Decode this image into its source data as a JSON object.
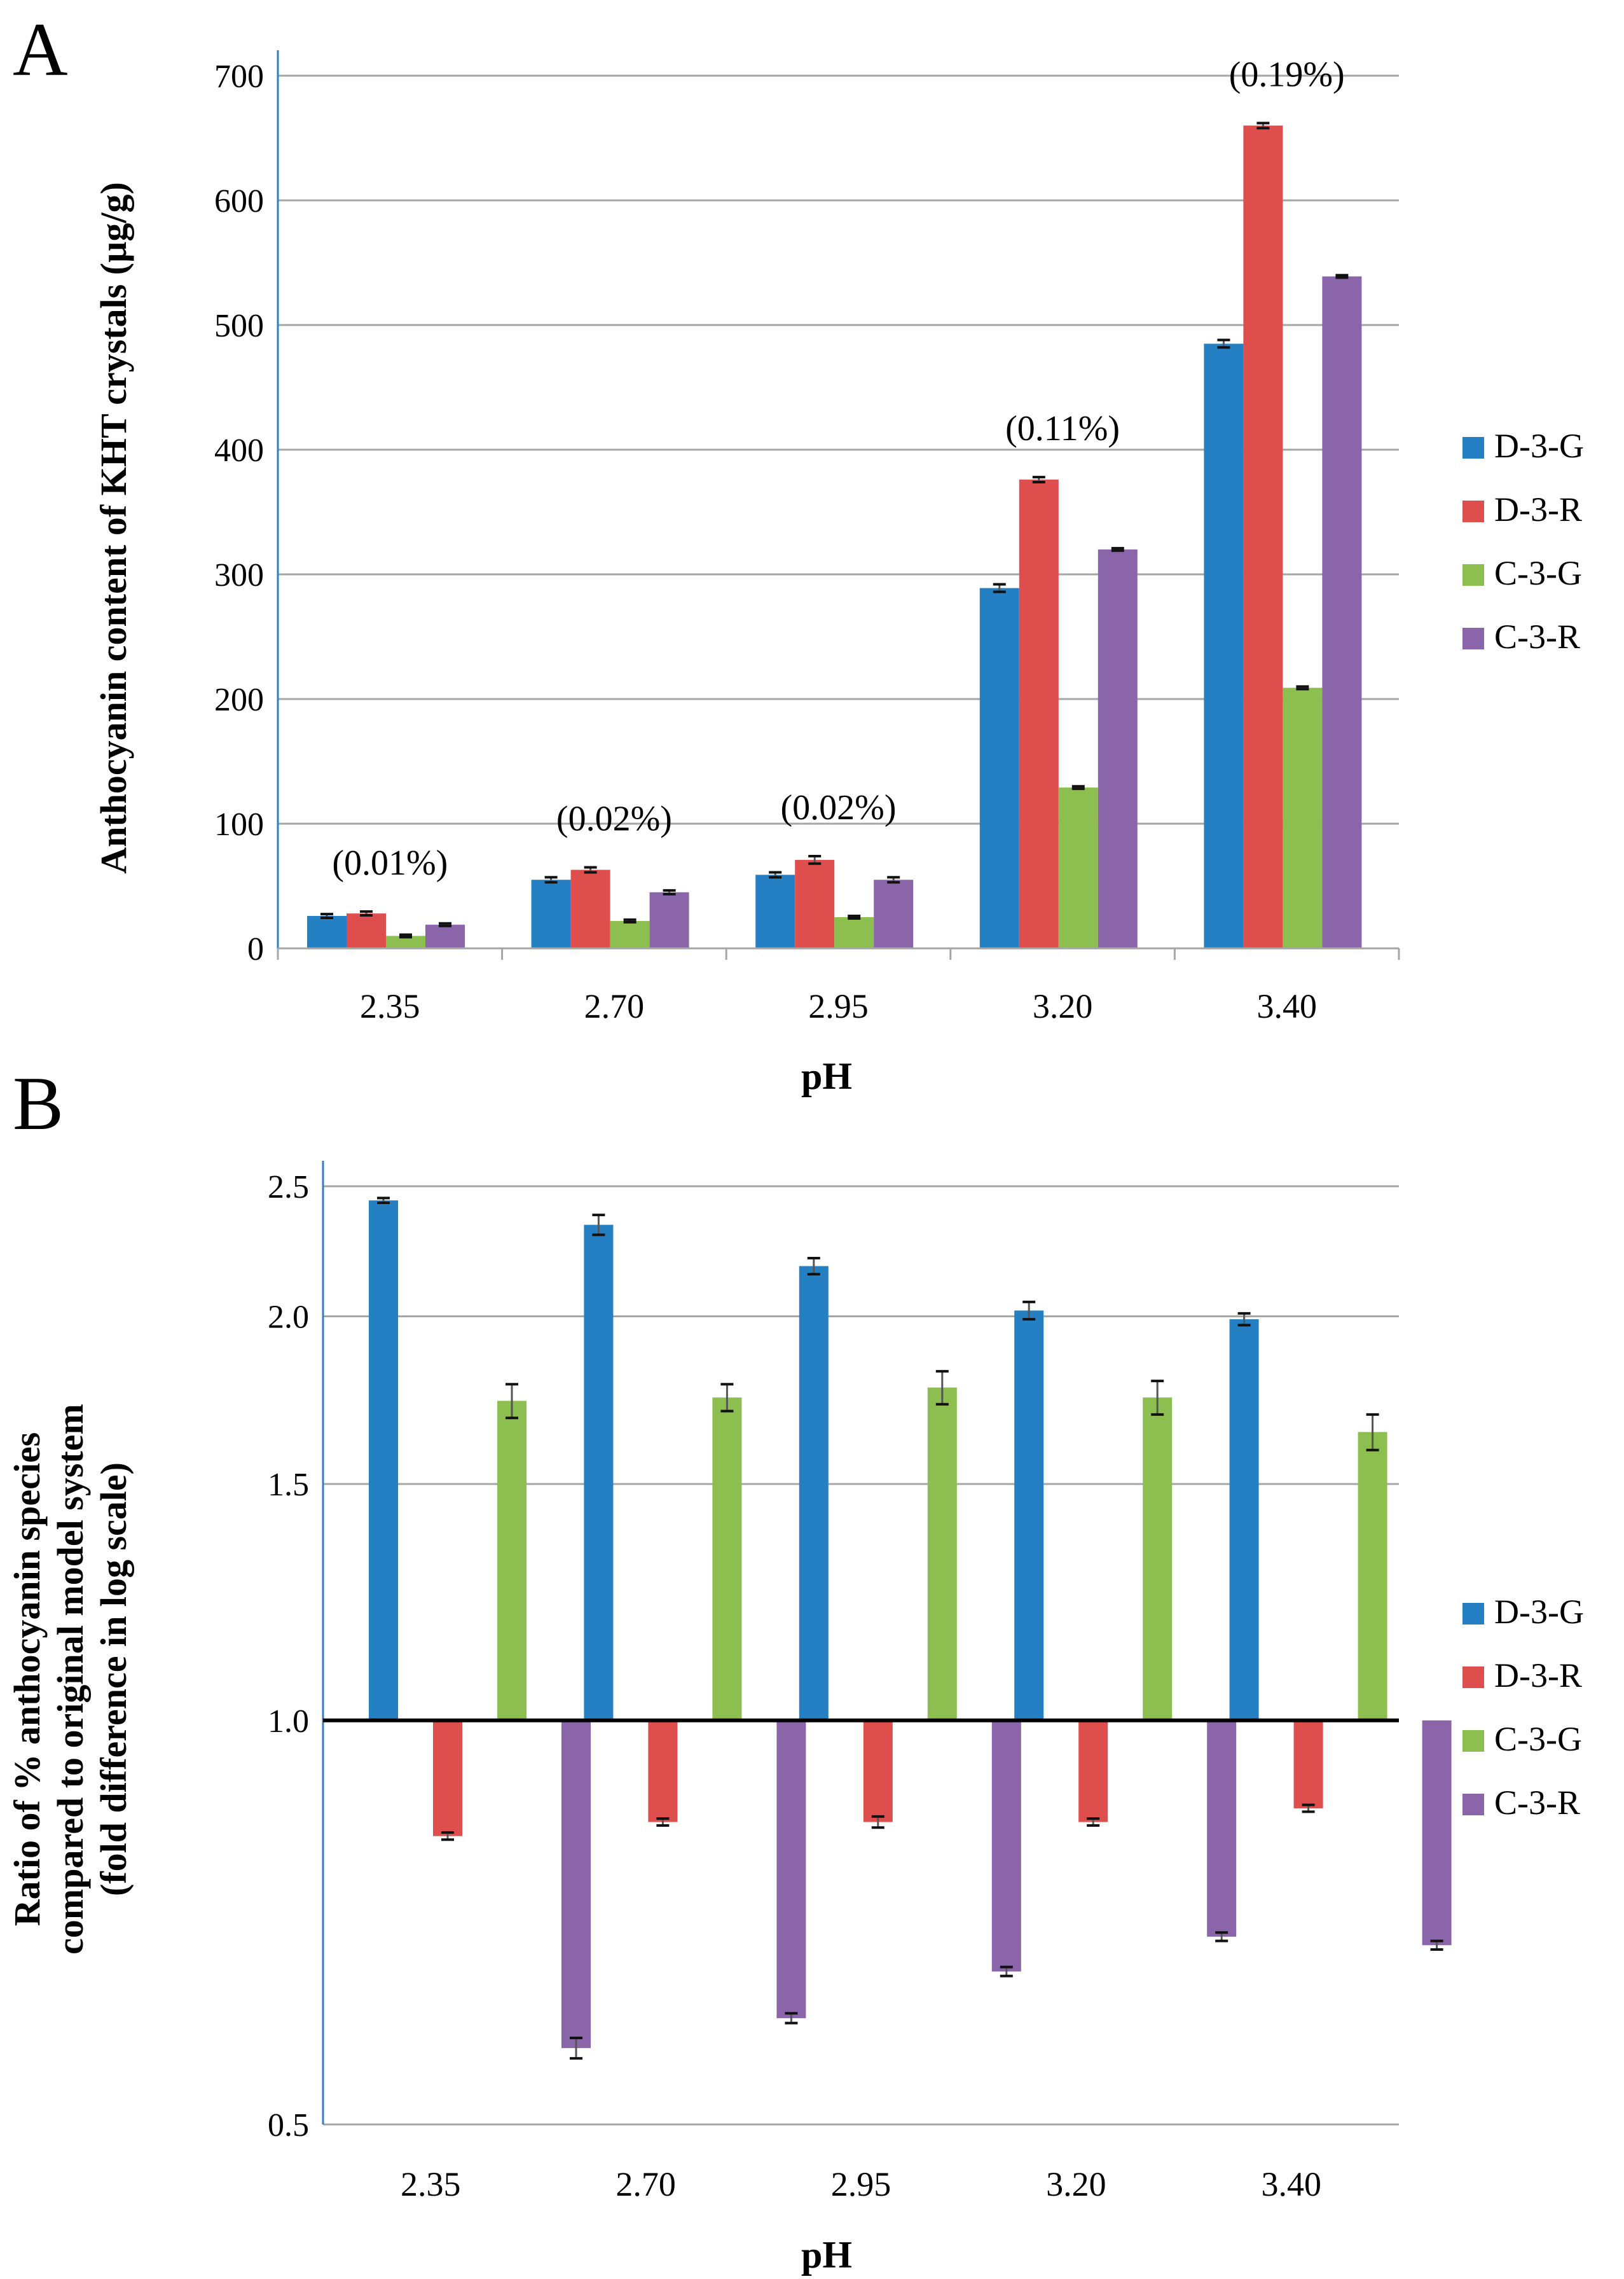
{
  "colors": {
    "D-3-G": "#2580C3",
    "D-3-R": "#DE4E4C",
    "C-3-G": "#8CBF4F",
    "C-3-R": "#8A65A9",
    "grid": "#a6a6a6",
    "axis": "#2d7fc1",
    "baseline": "#000000",
    "error": "#555555"
  },
  "chart_data": [
    {
      "panel": "A",
      "type": "bar",
      "panel_label": "A",
      "categories": [
        "2.35",
        "2.70",
        "2.95",
        "3.20",
        "3.40"
      ],
      "series": [
        {
          "name": "D-3-G",
          "values": [
            26,
            55,
            59,
            289,
            485
          ],
          "errors": [
            1.5,
            2,
            2,
            3,
            3
          ]
        },
        {
          "name": "D-3-R",
          "values": [
            28,
            63,
            71,
            376,
            660
          ],
          "errors": [
            1.5,
            2,
            3,
            2,
            2
          ]
        },
        {
          "name": "C-3-G",
          "values": [
            10,
            22,
            25,
            129,
            209
          ],
          "errors": [
            1,
            1,
            1,
            1,
            1
          ]
        },
        {
          "name": "C-3-R",
          "values": [
            19,
            45,
            55,
            320,
            539
          ],
          "errors": [
            1,
            1.5,
            2,
            1,
            1
          ]
        }
      ],
      "annotations": [
        "(0.01%)",
        "(0.02%)",
        "(0.02%)",
        "(0.11%)",
        "(0.19%)"
      ],
      "xlabel": "pH",
      "ylabel": "Anthocyanin content of KHT crystals (µg/g)",
      "ylim": [
        0,
        700
      ],
      "yticks": [
        0,
        100,
        200,
        300,
        400,
        500,
        600,
        700
      ],
      "ytick_labels": [
        "0",
        "100",
        "200",
        "300",
        "400",
        "500",
        "600",
        "700"
      ],
      "grid": true,
      "legend": "right",
      "legend_labels": [
        "D-3-G",
        "D-3-R",
        "C-3-G",
        "C-3-R"
      ]
    },
    {
      "panel": "B",
      "type": "bar",
      "panel_label": "B",
      "yscale": "log",
      "baseline": 1.0,
      "categories": [
        "2.35",
        "2.70",
        "2.95",
        "3.20",
        "3.40"
      ],
      "series": [
        {
          "name": "D-3-G",
          "values": [
            2.44,
            2.34,
            2.18,
            2.02,
            1.99
          ],
          "errors": [
            0.01,
            0.04,
            0.03,
            0.03,
            0.02
          ]
        },
        {
          "name": "D-3-R",
          "values": [
            0.82,
            0.84,
            0.84,
            0.84,
            0.86
          ],
          "errors": [
            0.005,
            0.005,
            0.008,
            0.005,
            0.005
          ]
        },
        {
          "name": "C-3-G",
          "values": [
            1.73,
            1.74,
            1.77,
            1.74,
            1.64
          ],
          "errors": [
            0.05,
            0.04,
            0.05,
            0.05,
            0.05
          ]
        },
        {
          "name": "C-3-R",
          "values": [
            0.57,
            0.6,
            0.65,
            0.69,
            0.68
          ],
          "errors": [
            0.01,
            0.005,
            0.005,
            0.005,
            0.005
          ]
        }
      ],
      "xlabel": "pH",
      "ylabel_lines": [
        "Ratio of % anthocyanin species",
        "compared to original model system",
        "(fold difference in log scale)"
      ],
      "ylim": [
        0.5,
        2.5
      ],
      "yticks": [
        0.5,
        1.0,
        1.5,
        2.0,
        2.5
      ],
      "ytick_labels": [
        "0.5",
        "1.0",
        "1.5",
        "2.0",
        "2.5"
      ],
      "grid": true,
      "legend": "right",
      "legend_labels": [
        "D-3-G",
        "D-3-R",
        "C-3-G",
        "C-3-R"
      ]
    }
  ]
}
